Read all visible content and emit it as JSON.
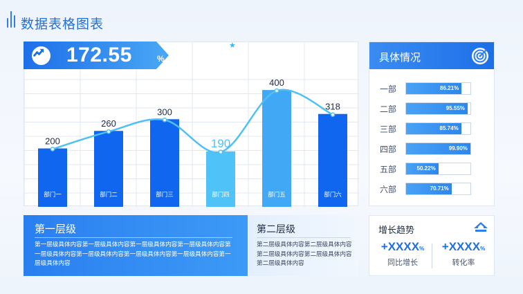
{
  "page_title": "数据表格图表",
  "kpi": {
    "value": "172.55",
    "unit": "%"
  },
  "chart_data": {
    "type": "bar",
    "categories": [
      "部门一",
      "部门二",
      "部门三",
      "部门四",
      "部门五",
      "部门六"
    ],
    "values": [
      200,
      260,
      300,
      190,
      400,
      318
    ],
    "line_values": [
      200,
      260,
      300,
      190,
      400,
      318
    ],
    "ylim": [
      0,
      450
    ],
    "grid": true,
    "colors": {
      "bar": "#1166f0",
      "bar_highlight": "#4fc3f7",
      "bar_alt": "#41a8f5",
      "line": "#4fc0f2"
    },
    "highlight_index": 3,
    "alt_index": 4
  },
  "detail": {
    "title": "具体情况",
    "rows": [
      {
        "label": "一部",
        "pct": "86.21%",
        "value": 0.8621
      },
      {
        "label": "二部",
        "pct": "95.55%",
        "value": 0.9555
      },
      {
        "label": "三部",
        "pct": "85.74%",
        "value": 0.8574
      },
      {
        "label": "四部",
        "pct": "99.90%",
        "value": 0.999
      },
      {
        "label": "五部",
        "pct": "50.22%",
        "value": 0.5022
      },
      {
        "label": "六部",
        "pct": "70.71%",
        "value": 0.7071
      }
    ]
  },
  "level1": {
    "title": "第一层级",
    "body": "第一层级具体内容第一层级具体内容第一层级具体内容第一层级具体内容第一层级具体内容第一层级具体内容第一层级具体内容第一层级具体内容第一层级具体内容"
  },
  "level2": {
    "title": "第二层级",
    "body": "第二层级具体内容第二层级具体内容第二层级具体内容第二层级具体内容第二层级具体内容"
  },
  "growth": {
    "title": "增长趋势",
    "metrics": [
      {
        "value": "+XXXX",
        "unit": "%",
        "label": "同比增长"
      },
      {
        "value": "+XXXX",
        "unit": "%",
        "label": "转化率"
      }
    ]
  }
}
